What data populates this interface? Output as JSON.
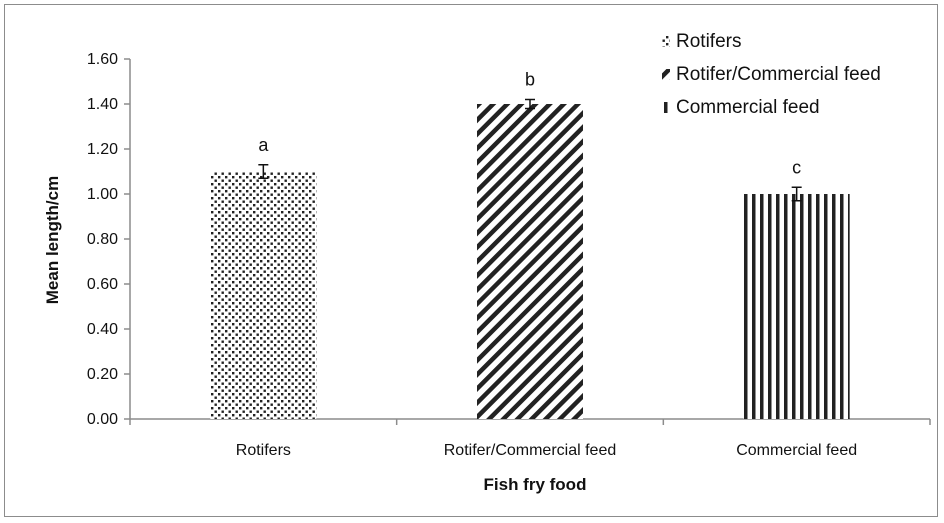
{
  "chart_data": {
    "type": "bar",
    "categories": [
      "Rotifers",
      "Rotifer/Commercial feed",
      "Commercial feed"
    ],
    "series": [
      {
        "name": "Fish fry food",
        "values": [
          1.1,
          1.4,
          1.0
        ],
        "errors": [
          0.03,
          0.02,
          0.03
        ],
        "significance_labels": [
          "a",
          "b",
          "c"
        ],
        "patterns": [
          "dots",
          "diagonal",
          "vertical"
        ]
      }
    ],
    "legend": {
      "position": "top-right",
      "entries": [
        "Rotifers",
        "Rotifer/Commercial feed",
        "Commercial feed"
      ]
    },
    "xlabel": "Fish fry food",
    "ylabel": "Mean length/cm",
    "ylim": [
      0,
      1.6
    ],
    "yticks": [
      "0.00",
      "0.20",
      "0.40",
      "0.60",
      "0.80",
      "1.00",
      "1.20",
      "1.40",
      "1.60"
    ],
    "grid": false,
    "colors": {
      "bar_pattern": "#222222",
      "axis": "#8c8c8c"
    }
  }
}
